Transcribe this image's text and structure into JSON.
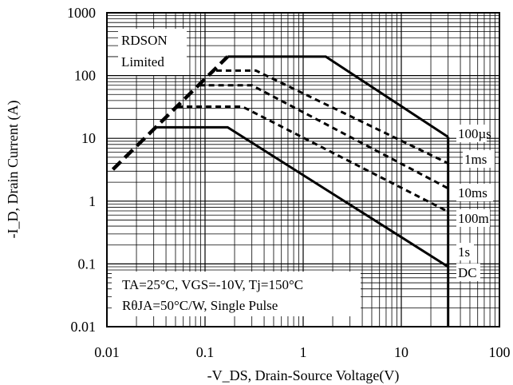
{
  "chart_data": {
    "type": "line",
    "xlabel": "-V_DS, Drain-Source Voltage(V)",
    "ylabel": "-I_D, Drain Current (A)",
    "xscale": "log",
    "yscale": "log",
    "xlim": [
      0.01,
      100
    ],
    "ylim": [
      0.01,
      1000
    ],
    "grid": true,
    "x_ticks": [
      "0.01",
      "0.1",
      "1",
      "10",
      "100"
    ],
    "y_ticks": [
      "1000",
      "100",
      "10",
      "1",
      "0.1",
      "0.01"
    ],
    "x_tick_values": [
      0.01,
      0.1,
      1,
      10,
      100
    ],
    "y_tick_values": [
      1000,
      100,
      10,
      1,
      0.1,
      0.01
    ],
    "rdson_limit": {
      "label_line1": "RDSON",
      "label_line2": "Limited",
      "points": [
        [
          0.0115,
          3.2
        ],
        [
          0.17,
          200
        ]
      ]
    },
    "series": [
      {
        "label": "100µs",
        "style": "solid",
        "points": [
          [
            0.17,
            200
          ],
          [
            1.7,
            200
          ],
          [
            30,
            10.5
          ]
        ]
      },
      {
        "label": "1ms",
        "style": "dashed",
        "points": [
          [
            0.13,
            120
          ],
          [
            0.33,
            120
          ],
          [
            30,
            4.0
          ]
        ]
      },
      {
        "label": "10ms",
        "style": "dashed",
        "points": [
          [
            0.087,
            70
          ],
          [
            0.3,
            70
          ],
          [
            30,
            1.6
          ]
        ]
      },
      {
        "label": "100m",
        "style": "dashed",
        "points": [
          [
            0.052,
            32
          ],
          [
            0.24,
            32
          ],
          [
            30,
            0.68
          ]
        ]
      },
      {
        "label": "1s",
        "style": "dashed",
        "points": [
          [
            30,
            0.27
          ]
        ]
      },
      {
        "label": "DC",
        "style": "solid",
        "points": [
          [
            0.032,
            15
          ],
          [
            0.17,
            15
          ],
          [
            30,
            0.09
          ]
        ]
      }
    ],
    "vertical_limit": {
      "x": 30,
      "y_range": [
        0.01,
        10.5
      ]
    },
    "conditions_line1": "TA=25°C, VGS=-10V, Tj=150°C",
    "conditions_line2": "RθJA=50°C/W, Single Pulse"
  }
}
